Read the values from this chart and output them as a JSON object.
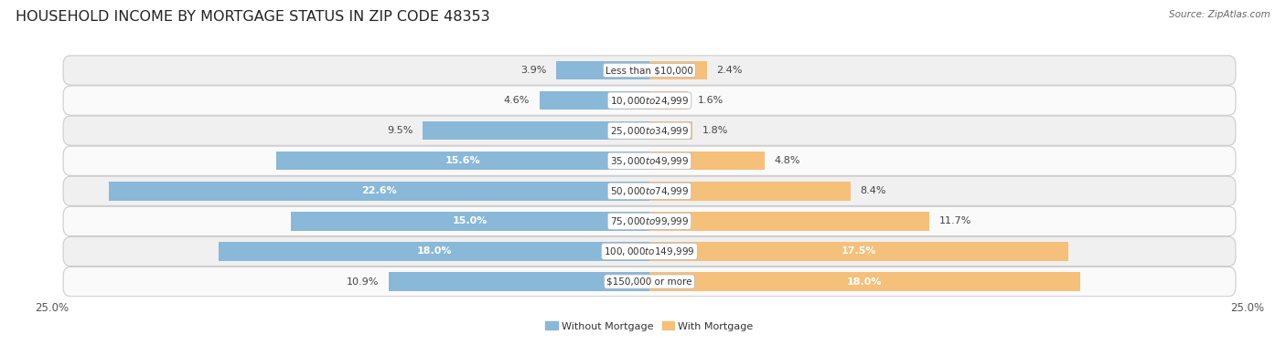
{
  "title": "HOUSEHOLD INCOME BY MORTGAGE STATUS IN ZIP CODE 48353",
  "source": "Source: ZipAtlas.com",
  "categories": [
    "Less than $10,000",
    "$10,000 to $24,999",
    "$25,000 to $34,999",
    "$35,000 to $49,999",
    "$50,000 to $74,999",
    "$75,000 to $99,999",
    "$100,000 to $149,999",
    "$150,000 or more"
  ],
  "without_mortgage": [
    3.9,
    4.6,
    9.5,
    15.6,
    22.6,
    15.0,
    18.0,
    10.9
  ],
  "with_mortgage": [
    2.4,
    1.6,
    1.8,
    4.8,
    8.4,
    11.7,
    17.5,
    18.0
  ],
  "color_without": "#89b8d8",
  "color_with": "#f5c07a",
  "axis_limit": 25.0,
  "fig_bg": "#ffffff",
  "row_bg_even": "#f0f0f0",
  "row_bg_odd": "#fafafa",
  "bar_height": 0.62,
  "title_fontsize": 11.5,
  "label_fontsize": 8.0,
  "category_fontsize": 7.5,
  "axis_label_fontsize": 8.5,
  "source_fontsize": 7.5
}
